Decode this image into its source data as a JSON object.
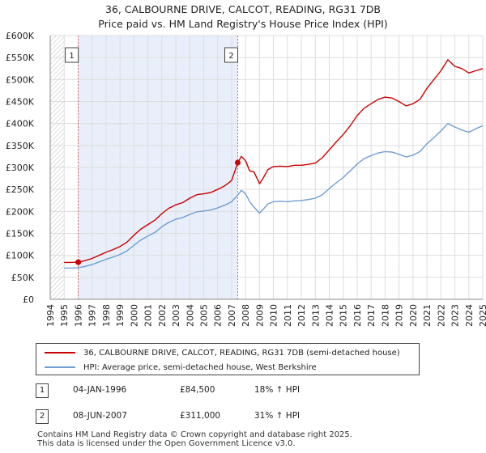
{
  "chart_data": {
    "type": "line",
    "title": "36, CALBOURNE DRIVE, CALCOT, READING, RG31 7DB",
    "subtitle": "Price paid vs. HM Land Registry's House Price Index (HPI)",
    "xlabel": "",
    "ylabel": "",
    "xlim": [
      1994,
      2025
    ],
    "ylim": [
      0,
      600000
    ],
    "y_ticks": [
      0,
      50000,
      100000,
      150000,
      200000,
      250000,
      300000,
      350000,
      400000,
      450000,
      500000,
      550000,
      600000
    ],
    "y_tick_labels": [
      "£0",
      "£50K",
      "£100K",
      "£150K",
      "£200K",
      "£250K",
      "£300K",
      "£350K",
      "£400K",
      "£450K",
      "£500K",
      "£550K",
      "£600K"
    ],
    "x_ticks": [
      1994,
      1995,
      1996,
      1997,
      1998,
      1999,
      2000,
      2001,
      2002,
      2003,
      2004,
      2005,
      2006,
      2007,
      2008,
      2009,
      2010,
      2011,
      2012,
      2013,
      2014,
      2015,
      2016,
      2017,
      2018,
      2019,
      2020,
      2021,
      2022,
      2023,
      2024,
      2025
    ],
    "x_tick_labels": [
      "1994",
      "1995",
      "1996",
      "1997",
      "1998",
      "1999",
      "2000",
      "2001",
      "2002",
      "2003",
      "2004",
      "2005",
      "2006",
      "2007",
      "2008",
      "2009",
      "2010",
      "2011",
      "2012",
      "2013",
      "2014",
      "2015",
      "2016",
      "2017",
      "2018",
      "2019",
      "2020",
      "2021",
      "2022",
      "2023",
      "2024",
      "2025"
    ],
    "grid": true,
    "hatched_x_ranges": [
      [
        1994,
        1995
      ],
      [
        2025,
        2025.3
      ]
    ],
    "shaded_x_range": [
      1996.01,
      2007.44
    ],
    "series": [
      {
        "name": "36, CALBOURNE DRIVE, CALCOT, READING, RG31 7DB (semi-detached house)",
        "color": "#cc0000",
        "x": [
          1995.0,
          1995.5,
          1996.01,
          1996.5,
          1997.0,
          1997.5,
          1998.0,
          1998.5,
          1999.0,
          1999.5,
          2000.0,
          2000.5,
          2001.0,
          2001.5,
          2002.0,
          2002.5,
          2003.0,
          2003.5,
          2004.0,
          2004.5,
          2005.0,
          2005.5,
          2006.0,
          2006.5,
          2007.0,
          2007.44,
          2007.7,
          2008.0,
          2008.3,
          2008.6,
          2009.0,
          2009.3,
          2009.6,
          2010.0,
          2010.5,
          2011.0,
          2011.5,
          2012.0,
          2012.5,
          2013.0,
          2013.5,
          2014.0,
          2014.5,
          2015.0,
          2015.5,
          2016.0,
          2016.5,
          2017.0,
          2017.5,
          2018.0,
          2018.5,
          2019.0,
          2019.5,
          2020.0,
          2020.5,
          2021.0,
          2021.5,
          2022.0,
          2022.5,
          2023.0,
          2023.5,
          2024.0,
          2024.5,
          2025.0
        ],
        "values": [
          84000,
          84000,
          84500,
          88000,
          93000,
          100000,
          107000,
          113000,
          120000,
          130000,
          146000,
          160000,
          170000,
          180000,
          195000,
          207000,
          215000,
          220000,
          230000,
          238000,
          240000,
          243000,
          250000,
          258000,
          270000,
          311000,
          325000,
          315000,
          292000,
          290000,
          263000,
          278000,
          295000,
          302000,
          303000,
          302000,
          305000,
          305000,
          307000,
          310000,
          322000,
          340000,
          358000,
          375000,
          395000,
          418000,
          435000,
          445000,
          455000,
          460000,
          458000,
          450000,
          440000,
          445000,
          455000,
          480000,
          500000,
          520000,
          545000,
          530000,
          525000,
          515000,
          520000,
          525000
        ]
      },
      {
        "name": "HPI: Average price, semi-detached house, West Berkshire",
        "color": "#6f9ed4",
        "x": [
          1995.0,
          1995.5,
          1996.0,
          1996.5,
          1997.0,
          1997.5,
          1998.0,
          1998.5,
          1999.0,
          1999.5,
          2000.0,
          2000.5,
          2001.0,
          2001.5,
          2002.0,
          2002.5,
          2003.0,
          2003.5,
          2004.0,
          2004.5,
          2005.0,
          2005.5,
          2006.0,
          2006.5,
          2007.0,
          2007.44,
          2007.7,
          2008.0,
          2008.3,
          2008.6,
          2009.0,
          2009.3,
          2009.6,
          2010.0,
          2010.5,
          2011.0,
          2011.5,
          2012.0,
          2012.5,
          2013.0,
          2013.5,
          2014.0,
          2014.5,
          2015.0,
          2015.5,
          2016.0,
          2016.5,
          2017.0,
          2017.5,
          2018.0,
          2018.5,
          2019.0,
          2019.5,
          2020.0,
          2020.5,
          2021.0,
          2021.5,
          2022.0,
          2022.5,
          2023.0,
          2023.5,
          2024.0,
          2024.5,
          2025.0
        ],
        "values": [
          71000,
          71000,
          72000,
          75000,
          79000,
          85000,
          91000,
          96000,
          102000,
          110000,
          123000,
          135000,
          144000,
          152000,
          165000,
          175000,
          182000,
          186000,
          193000,
          199000,
          201000,
          203000,
          208000,
          214000,
          222000,
          237000,
          248000,
          240000,
          222000,
          210000,
          196000,
          206000,
          217000,
          222000,
          223000,
          222000,
          224000,
          225000,
          227000,
          230000,
          238000,
          252000,
          265000,
          277000,
          292000,
          308000,
          320000,
          327000,
          333000,
          336000,
          335000,
          330000,
          324000,
          328000,
          336000,
          354000,
          368000,
          383000,
          400000,
          392000,
          385000,
          380000,
          388000,
          395000
        ]
      }
    ],
    "annotations": [
      {
        "id": "1",
        "x": 1996.01,
        "value": 84500
      },
      {
        "id": "2",
        "x": 2007.44,
        "value": 311000
      }
    ]
  },
  "legend": {
    "property_label": "36, CALBOURNE DRIVE, CALCOT, READING, RG31 7DB (semi-detached house)",
    "hpi_label": "HPI: Average price, semi-detached house, West Berkshire",
    "property_color": "#cc0000",
    "hpi_color": "#6f9ed4"
  },
  "transactions": [
    {
      "id": "1",
      "date": "04-JAN-1996",
      "price": "£84,500",
      "hpi_change": "18% ↑ HPI"
    },
    {
      "id": "2",
      "date": "08-JUN-2007",
      "price": "£311,000",
      "hpi_change": "31% ↑ HPI"
    }
  ],
  "footer": {
    "line1": "Contains HM Land Registry data © Crown copyright and database right 2025.",
    "line2": "This data is licensed under the Open Government Licence v3.0."
  }
}
